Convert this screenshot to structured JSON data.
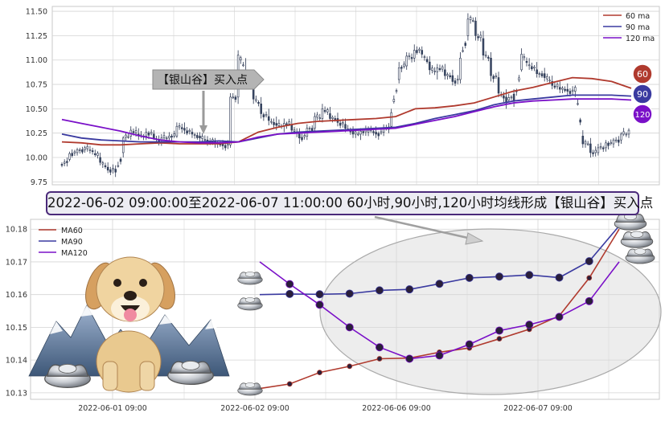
{
  "banner_text": "2022-06-02 09:00:00至2022-06-07 11:00:00 60小时,90小时,120小时均线形成【银山谷】买入点",
  "callout_text": "【银山谷】买入点",
  "colors": {
    "ma60": "#b03a2e",
    "ma90": "#3a3aa0",
    "ma120": "#7a10c8",
    "candle_up": "#ffffff",
    "candle_down": "#3a4a66",
    "candle_edge": "#2a3550",
    "grid": "#d4d4d4",
    "ellipse_fill": "#d8d8d8",
    "ellipse_stroke": "#aaaaaa",
    "banner_border": "#4b2a7a",
    "badge_60": "#b03a2e",
    "badge_90": "#3a3aa0",
    "badge_120": "#7a10c8"
  },
  "icons": [
    "golden-retriever-icon",
    "mountain-icon",
    "silver-ingot-icon"
  ],
  "chart_data": [
    {
      "type": "candlestick",
      "title": "",
      "ylim": [
        9.72,
        11.55
      ],
      "yticks": [
        9.75,
        10.0,
        10.25,
        10.5,
        10.75,
        11.0,
        11.25,
        11.5
      ],
      "grid": true,
      "legend": {
        "placement": "top-right",
        "entries": [
          "60 ma",
          "90 ma",
          "120 ma"
        ]
      },
      "price_badges": [
        "60",
        "90",
        "120"
      ],
      "ohlc_anchors": [
        [
          9.93,
          9.95,
          9.9,
          9.92
        ],
        [
          9.98,
          10.06,
          9.96,
          10.04
        ],
        [
          10.05,
          10.1,
          10.02,
          10.08
        ],
        [
          10.08,
          10.12,
          10.05,
          10.1
        ],
        [
          10.07,
          10.1,
          10.03,
          10.06
        ],
        [
          10.0,
          10.05,
          9.92,
          9.95
        ],
        [
          9.9,
          9.95,
          9.84,
          9.87
        ],
        [
          9.88,
          9.92,
          9.8,
          9.85
        ],
        [
          10.05,
          10.22,
          10.0,
          10.2
        ],
        [
          10.22,
          10.32,
          10.18,
          10.28
        ],
        [
          10.24,
          10.3,
          10.18,
          10.22
        ],
        [
          10.22,
          10.3,
          10.18,
          10.26
        ],
        [
          10.24,
          10.28,
          10.18,
          10.2
        ],
        [
          10.18,
          10.24,
          10.12,
          10.2
        ],
        [
          10.2,
          10.26,
          10.14,
          10.22
        ],
        [
          10.22,
          10.36,
          10.2,
          10.32
        ],
        [
          10.3,
          10.36,
          10.24,
          10.28
        ],
        [
          10.26,
          10.3,
          10.2,
          10.24
        ],
        [
          10.22,
          10.26,
          10.16,
          10.2
        ],
        [
          10.18,
          10.22,
          10.12,
          10.16
        ],
        [
          10.16,
          10.2,
          10.1,
          10.14
        ],
        [
          10.14,
          10.18,
          10.08,
          10.12
        ],
        [
          10.13,
          10.66,
          10.1,
          10.62
        ],
        [
          10.62,
          11.1,
          10.55,
          11.05
        ],
        [
          10.9,
          11.02,
          10.75,
          10.8
        ],
        [
          10.75,
          10.82,
          10.55,
          10.6
        ],
        [
          10.55,
          10.62,
          10.4,
          10.45
        ],
        [
          10.42,
          10.5,
          10.33,
          10.38
        ],
        [
          10.35,
          10.42,
          10.28,
          10.33
        ],
        [
          10.32,
          10.4,
          10.26,
          10.35
        ],
        [
          10.34,
          10.4,
          10.25,
          10.28
        ],
        [
          10.25,
          10.3,
          10.14,
          10.2
        ],
        [
          10.22,
          10.34,
          10.18,
          10.3
        ],
        [
          10.3,
          10.46,
          10.26,
          10.42
        ],
        [
          10.4,
          10.55,
          10.36,
          10.5
        ],
        [
          10.45,
          10.52,
          10.38,
          10.4
        ],
        [
          10.4,
          10.46,
          10.32,
          10.36
        ],
        [
          10.34,
          10.4,
          10.26,
          10.3
        ],
        [
          10.28,
          10.32,
          10.2,
          10.24
        ],
        [
          10.24,
          10.3,
          10.18,
          10.27
        ],
        [
          10.26,
          10.32,
          10.22,
          10.28
        ],
        [
          10.26,
          10.32,
          10.2,
          10.24
        ],
        [
          10.26,
          10.34,
          10.22,
          10.3
        ],
        [
          10.32,
          10.5,
          10.3,
          10.46
        ],
        [
          10.8,
          10.98,
          10.76,
          10.92
        ],
        [
          10.94,
          11.08,
          10.9,
          11.04
        ],
        [
          11.02,
          11.16,
          10.98,
          11.1
        ],
        [
          11.1,
          11.14,
          11.02,
          11.06
        ],
        [
          10.98,
          11.04,
          10.85,
          10.9
        ],
        [
          10.88,
          10.96,
          10.8,
          10.92
        ],
        [
          10.9,
          10.96,
          10.8,
          10.84
        ],
        [
          10.84,
          10.9,
          10.74,
          10.78
        ],
        [
          10.8,
          11.08,
          10.76,
          11.02
        ],
        [
          11.25,
          11.48,
          11.2,
          11.42
        ],
        [
          11.4,
          11.44,
          11.2,
          11.25
        ],
        [
          11.22,
          11.3,
          11.0,
          11.05
        ],
        [
          11.02,
          11.08,
          10.78,
          10.84
        ],
        [
          10.82,
          10.88,
          10.62,
          10.66
        ],
        [
          10.62,
          10.7,
          10.5,
          10.56
        ],
        [
          10.65,
          10.7,
          10.52,
          10.58
        ],
        [
          10.9,
          11.12,
          10.88,
          11.06
        ],
        [
          10.95,
          11.02,
          10.9,
          10.95
        ],
        [
          10.9,
          10.98,
          10.82,
          10.86
        ],
        [
          10.86,
          10.92,
          10.78,
          10.82
        ],
        [
          10.78,
          10.84,
          10.7,
          10.74
        ],
        [
          10.72,
          10.78,
          10.66,
          10.7
        ],
        [
          10.7,
          10.76,
          10.64,
          10.68
        ],
        [
          10.68,
          10.74,
          10.62,
          10.72
        ],
        [
          10.22,
          10.28,
          10.1,
          10.14
        ],
        [
          10.14,
          10.2,
          10.0,
          10.05
        ],
        [
          10.05,
          10.14,
          10.02,
          10.1
        ],
        [
          10.1,
          10.18,
          10.06,
          10.15
        ],
        [
          10.14,
          10.2,
          10.1,
          10.18
        ],
        [
          10.18,
          10.26,
          10.14,
          10.24
        ],
        [
          10.24,
          10.3,
          10.2,
          10.28
        ]
      ],
      "series": [
        {
          "name": "60 ma",
          "values": [
            10.16,
            10.15,
            10.13,
            10.13,
            10.14,
            10.15,
            10.14,
            10.14,
            10.14,
            10.16,
            10.26,
            10.31,
            10.35,
            10.37,
            10.38,
            10.39,
            10.4,
            10.42,
            10.5,
            10.51,
            10.53,
            10.56,
            10.62,
            10.68,
            10.72,
            10.77,
            10.82,
            10.81,
            10.78,
            10.71
          ]
        },
        {
          "name": "90 ma",
          "values": [
            10.24,
            10.2,
            10.18,
            10.17,
            10.16,
            10.16,
            10.16,
            10.16,
            10.17,
            10.16,
            10.2,
            10.24,
            10.26,
            10.27,
            10.28,
            10.29,
            10.3,
            10.31,
            10.35,
            10.4,
            10.44,
            10.48,
            10.54,
            10.58,
            10.6,
            10.62,
            10.64,
            10.64,
            10.64,
            10.63
          ]
        },
        {
          "name": "120 ma",
          "values": [
            10.39,
            10.35,
            10.31,
            10.27,
            10.22,
            10.18,
            10.16,
            10.15,
            10.15,
            10.16,
            10.21,
            10.24,
            10.25,
            10.26,
            10.27,
            10.28,
            10.29,
            10.3,
            10.34,
            10.38,
            10.42,
            10.47,
            10.52,
            10.56,
            10.58,
            10.59,
            10.6,
            10.6,
            10.6,
            10.59
          ]
        }
      ]
    },
    {
      "type": "line",
      "title": "",
      "ylim": [
        10.128,
        10.183
      ],
      "yticks": [
        10.13,
        10.14,
        10.15,
        10.16,
        10.17,
        10.18
      ],
      "x_tick_labels": [
        "2022-06-01 09:00",
        "2022-06-02 09:00",
        "2022-06-06 09:00",
        "2022-06-07 09:00"
      ],
      "grid": true,
      "legend": {
        "placement": "top-left",
        "entries": [
          "MA60",
          "MA90",
          "MA120"
        ]
      },
      "series": [
        {
          "name": "MA60",
          "values": [
            10.1313,
            10.1327,
            10.1362,
            10.1381,
            10.1404,
            10.1406,
            10.1424,
            10.1437,
            10.1465,
            10.1494,
            10.1535,
            10.1651,
            10.18
          ]
        },
        {
          "name": "MA90",
          "values": [
            10.16,
            10.1602,
            10.1601,
            10.1603,
            10.1613,
            10.1616,
            10.1633,
            10.1651,
            10.1655,
            10.166,
            10.1652,
            10.1702,
            10.181
          ]
        },
        {
          "name": "MA120",
          "values": [
            10.17,
            10.1632,
            10.1569,
            10.15,
            10.1439,
            10.1404,
            10.1414,
            10.1448,
            10.149,
            10.1508,
            10.1532,
            10.158,
            10.17
          ]
        }
      ]
    }
  ]
}
